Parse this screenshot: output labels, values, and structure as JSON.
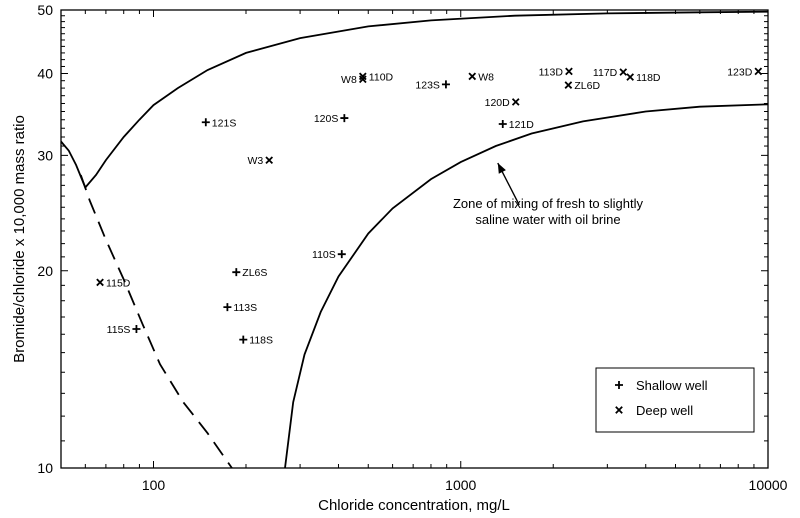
{
  "chart_data": {
    "type": "scatter",
    "xlabel": "Chloride concentration, mg/L",
    "ylabel": "Bromide/chloride x 10,000 mass ratio",
    "x_scale": "log",
    "y_scale": "log",
    "xlim": [
      50,
      10000
    ],
    "ylim": [
      10,
      50
    ],
    "x_ticks": [
      100,
      1000,
      10000
    ],
    "x_tick_labels": [
      "100",
      "1000",
      "10000"
    ],
    "y_ticks": [
      10,
      20,
      30,
      40,
      50
    ],
    "y_tick_labels": [
      "10",
      "20",
      "30",
      "40",
      "50"
    ],
    "grid": false,
    "legend_position": "bottom-right",
    "series": [
      {
        "name": "Shallow well",
        "marker": "plus",
        "points": [
          {
            "label": "121S",
            "x": 148,
            "y": 33.7
          },
          {
            "label": "ZL6S",
            "x": 186,
            "y": 19.9
          },
          {
            "label": "113S",
            "x": 174,
            "y": 17.6
          },
          {
            "label": "118S",
            "x": 196,
            "y": 15.7
          },
          {
            "label": "115S",
            "x": 88,
            "y": 16.3
          },
          {
            "label": "110S",
            "x": 410,
            "y": 21.2
          },
          {
            "label": "120S",
            "x": 418,
            "y": 34.2
          },
          {
            "label": "123S",
            "x": 895,
            "y": 38.5
          },
          {
            "label": "121D",
            "x": 1370,
            "y": 33.5
          }
        ]
      },
      {
        "name": "Deep well",
        "marker": "x",
        "points": [
          {
            "label": "115D",
            "x": 67,
            "y": 19.2
          },
          {
            "label": "W3",
            "x": 238,
            "y": 29.5
          },
          {
            "label": "W8",
            "x": 480,
            "y": 39.2
          },
          {
            "label": "110D",
            "x": 480,
            "y": 39.6
          },
          {
            "label": "W8",
            "x": 1090,
            "y": 39.6
          },
          {
            "label": "120D",
            "x": 1510,
            "y": 36.2
          },
          {
            "label": "113D",
            "x": 2250,
            "y": 40.3
          },
          {
            "label": "ZL6D",
            "x": 2240,
            "y": 38.4
          },
          {
            "label": "117D",
            "x": 3380,
            "y": 40.2
          },
          {
            "label": "118D",
            "x": 3560,
            "y": 39.5
          },
          {
            "label": "123D",
            "x": 9300,
            "y": 40.3
          }
        ]
      }
    ],
    "annotation": {
      "lines": [
        "Zone of mixing of fresh to slightly",
        "saline water with oil brine"
      ],
      "arrow_from": {
        "x": 1550,
        "y": 25.2
      },
      "arrow_to": {
        "x": 1320,
        "y": 29.2
      }
    },
    "curves": [
      {
        "style": "solid",
        "points": [
          [
            50,
            31.5
          ],
          [
            53,
            30.5
          ],
          [
            56,
            29.0
          ],
          [
            60,
            26.8
          ],
          [
            65,
            28.0
          ],
          [
            70,
            29.5
          ],
          [
            80,
            32.0
          ],
          [
            90,
            34.0
          ],
          [
            100,
            35.8
          ],
          [
            120,
            38.0
          ],
          [
            150,
            40.5
          ],
          [
            200,
            43.0
          ],
          [
            300,
            45.3
          ],
          [
            500,
            47.2
          ],
          [
            800,
            48.2
          ],
          [
            1500,
            49.0
          ],
          [
            3000,
            49.4
          ],
          [
            6000,
            49.6
          ],
          [
            10000,
            49.7
          ]
        ]
      },
      {
        "style": "solid",
        "points": [
          [
            268,
            10.0
          ],
          [
            285,
            12.6
          ],
          [
            310,
            14.9
          ],
          [
            350,
            17.3
          ],
          [
            400,
            19.6
          ],
          [
            500,
            22.8
          ],
          [
            600,
            24.9
          ],
          [
            800,
            27.6
          ],
          [
            1000,
            29.3
          ],
          [
            1300,
            31.0
          ],
          [
            1700,
            32.4
          ],
          [
            2500,
            33.8
          ],
          [
            4000,
            35.0
          ],
          [
            6000,
            35.6
          ],
          [
            10000,
            35.9
          ]
        ]
      },
      {
        "style": "dashed",
        "points": [
          [
            58,
            28.0
          ],
          [
            62,
            25.6
          ],
          [
            70,
            22.3
          ],
          [
            80,
            19.4
          ],
          [
            92,
            16.6
          ],
          [
            105,
            14.4
          ],
          [
            125,
            12.6
          ],
          [
            150,
            11.3
          ],
          [
            180,
            10.0
          ]
        ]
      }
    ]
  }
}
